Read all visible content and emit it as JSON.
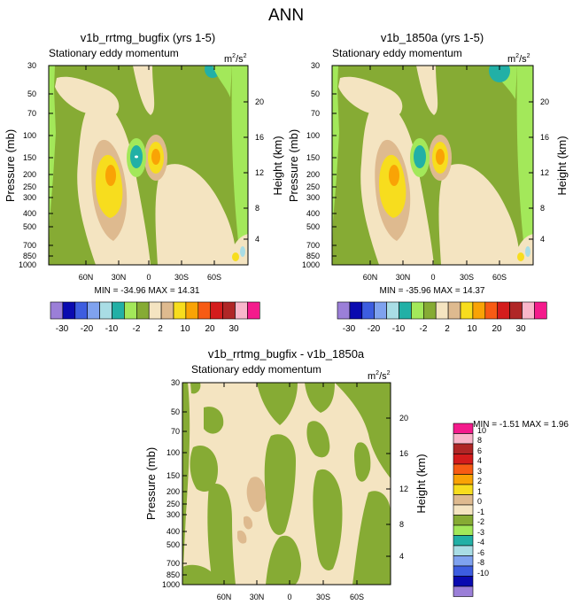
{
  "figure_title": "ANN",
  "legend_palette": [
    "#9b7fd8",
    "#0a0ab0",
    "#3d5de0",
    "#7fa2ef",
    "#a9dde5",
    "#22b0a6",
    "#a3e85a",
    "#86ab34",
    "#f4e4c1",
    "#deba8f",
    "#f7dd1e",
    "#f9a305",
    "#f75b14",
    "#d41c1c",
    "#b02626",
    "#f9b6ca",
    "#f41b8c"
  ],
  "chart_data": [
    {
      "type": "heatmap",
      "title": "v1b_rrtmg_bugfix (yrs 1-5)",
      "subtitle": "Stationary eddy momentum",
      "units_base": "m",
      "units_sup1": "2",
      "units_mid": "/s",
      "units_sup2": "2",
      "ylabel": "Pressure (mb)",
      "y2label": "Height (km)",
      "yticks": [
        30,
        50,
        70,
        100,
        150,
        200,
        250,
        300,
        400,
        500,
        700,
        850,
        1000
      ],
      "y2ticks": [
        20,
        16,
        12,
        8,
        4
      ],
      "xticks": [
        "60N",
        "30N",
        "0",
        "30S",
        "60S"
      ],
      "x_values": [
        60,
        30,
        0,
        -30,
        -60
      ],
      "xlim": [
        90,
        -90
      ],
      "ylim": [
        1000,
        30
      ],
      "min_label": "MIN = -34.96",
      "max_label": "MAX =  14.31",
      "levels_label_bar": [
        "-30",
        "-20",
        "-10",
        "-2",
        "2",
        "10",
        "20",
        "30"
      ]
    },
    {
      "type": "heatmap",
      "title": "v1b_1850a (yrs 1-5)",
      "subtitle": "Stationary eddy momentum",
      "units_base": "m",
      "units_sup1": "2",
      "units_mid": "/s",
      "units_sup2": "2",
      "ylabel": "Pressure (mb)",
      "y2label": "Height (km)",
      "yticks": [
        30,
        50,
        70,
        100,
        150,
        200,
        250,
        300,
        400,
        500,
        700,
        850,
        1000
      ],
      "y2ticks": [
        20,
        16,
        12,
        8,
        4
      ],
      "xticks": [
        "60N",
        "30N",
        "0",
        "30S",
        "60S"
      ],
      "x_values": [
        60,
        30,
        0,
        -30,
        -60
      ],
      "xlim": [
        90,
        -90
      ],
      "ylim": [
        1000,
        30
      ],
      "min_label": "MIN = -35.96",
      "max_label": "MAX =  14.37",
      "levels_label_bar": [
        "-30",
        "-20",
        "-10",
        "-2",
        "2",
        "10",
        "20",
        "30"
      ]
    },
    {
      "type": "heatmap",
      "title": "v1b_rrtmg_bugfix - v1b_1850a",
      "subtitle": "Stationary eddy momentum",
      "units_base": "m",
      "units_sup1": "2",
      "units_mid": "/s",
      "units_sup2": "2",
      "ylabel": "Pressure (mb)",
      "y2label": "Height (km)",
      "yticks": [
        30,
        50,
        70,
        100,
        150,
        200,
        250,
        300,
        400,
        500,
        700,
        850,
        1000
      ],
      "y2ticks": [
        20,
        16,
        12,
        8,
        4
      ],
      "xticks": [
        "60N",
        "30N",
        "0",
        "30S",
        "60S"
      ],
      "x_values": [
        60,
        30,
        0,
        -30,
        -60
      ],
      "xlim": [
        90,
        -90
      ],
      "ylim": [
        1000,
        30
      ],
      "min_label": "MIN =  -1.51",
      "max_label": "MAX =   1.96",
      "levels_label_bar": [
        "10",
        "8",
        "6",
        "4",
        "3",
        "2",
        "1",
        "0",
        "-1",
        "-2",
        "-3",
        "-4",
        "-6",
        "-8",
        "-10"
      ]
    }
  ]
}
